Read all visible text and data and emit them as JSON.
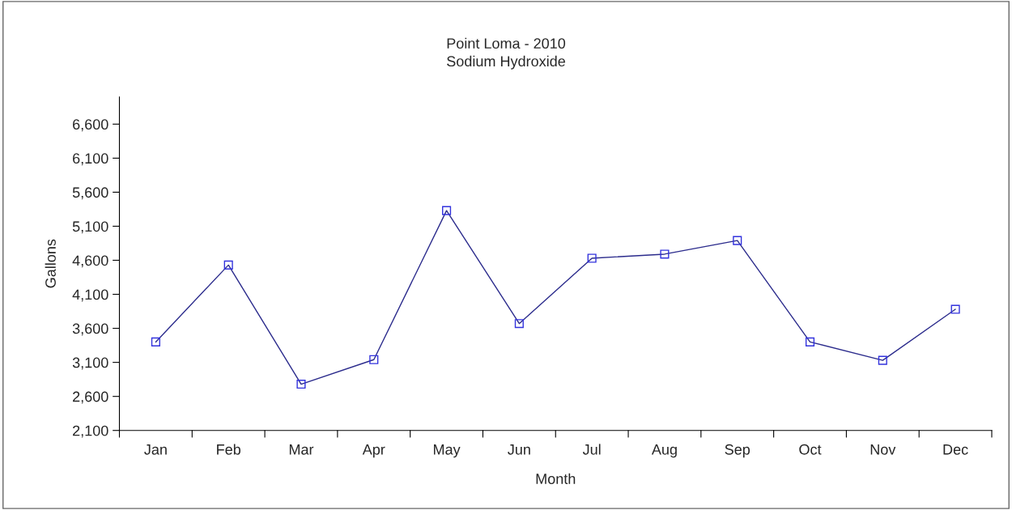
{
  "chart_data": {
    "type": "line",
    "title": "Point Loma - 2010",
    "subtitle": "Sodium Hydroxide",
    "xlabel": "Month",
    "ylabel": "Gallons",
    "categories": [
      "Jan",
      "Feb",
      "Mar",
      "Apr",
      "May",
      "Jun",
      "Jul",
      "Aug",
      "Sep",
      "Oct",
      "Nov",
      "Dec"
    ],
    "series": [
      {
        "color": "#2b2b8c",
        "values": [
          3400,
          4530,
          2780,
          3140,
          5330,
          3670,
          4630,
          4690,
          4890,
          3400,
          3130,
          3880
        ]
      }
    ],
    "ylim": [
      2100,
      7000
    ],
    "yticks": [
      {
        "value": 2100,
        "label": "2,100"
      },
      {
        "value": 2600,
        "label": "2,600"
      },
      {
        "value": 3100,
        "label": "3,100"
      },
      {
        "value": 3600,
        "label": "3,600"
      },
      {
        "value": 4100,
        "label": "4,100"
      },
      {
        "value": 4600,
        "label": "4,600"
      },
      {
        "value": 5100,
        "label": "5,100"
      },
      {
        "value": 5600,
        "label": "5,600"
      },
      {
        "value": 6100,
        "label": "6,100"
      },
      {
        "value": 6600,
        "label": "6,600"
      }
    ],
    "marker": "square",
    "line_style": "solid",
    "grid": false,
    "legend": false
  }
}
